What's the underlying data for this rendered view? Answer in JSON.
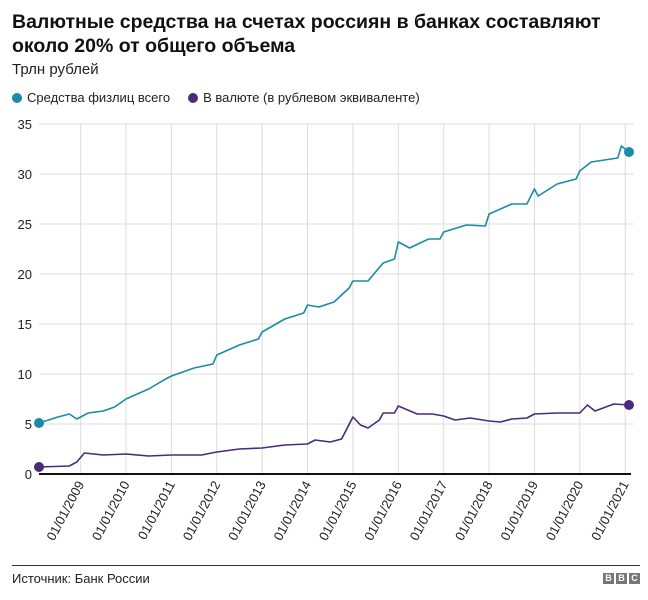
{
  "chart_data": {
    "type": "line",
    "title": "Валютные средства на счетах россиян в банках составляют около 20% от общего объема",
    "subtitle": "Трлн рублей",
    "source": "Источник: Банк России",
    "logo": "BBC",
    "ylim": [
      0,
      35
    ],
    "yticks": [
      0,
      5,
      10,
      15,
      20,
      25,
      30,
      35
    ],
    "xlim": [
      "2008-02",
      "2021-02"
    ],
    "xticks": [
      "01/01/2009",
      "01/01/2010",
      "01/01/2011",
      "01/01/2012",
      "01/01/2013",
      "01/01/2014",
      "01/01/2015",
      "01/01/2016",
      "01/01/2017",
      "01/01/2018",
      "01/01/2019",
      "01/01/2020",
      "01/01/2021"
    ],
    "grid": true,
    "legend_position": "top-left",
    "series": [
      {
        "name": "Средства физлиц всего",
        "color": "#1a8ca7",
        "points": [
          [
            "2008-02",
            5.1
          ],
          [
            "2008-07",
            5.7
          ],
          [
            "2008-10",
            6.0
          ],
          [
            "2008-12",
            5.5
          ],
          [
            "2009-03",
            6.1
          ],
          [
            "2009-07",
            6.3
          ],
          [
            "2009-10",
            6.7
          ],
          [
            "2010-01",
            7.5
          ],
          [
            "2010-07",
            8.5
          ],
          [
            "2010-11",
            9.4
          ],
          [
            "2011-01",
            9.8
          ],
          [
            "2011-07",
            10.6
          ],
          [
            "2011-12",
            11.0
          ],
          [
            "2012-01",
            11.9
          ],
          [
            "2012-07",
            12.9
          ],
          [
            "2012-12",
            13.5
          ],
          [
            "2013-01",
            14.2
          ],
          [
            "2013-07",
            15.5
          ],
          [
            "2013-12",
            16.1
          ],
          [
            "2014-01",
            16.9
          ],
          [
            "2014-04",
            16.7
          ],
          [
            "2014-08",
            17.2
          ],
          [
            "2014-12",
            18.6
          ],
          [
            "2015-01",
            19.3
          ],
          [
            "2015-05",
            19.3
          ],
          [
            "2015-09",
            21.1
          ],
          [
            "2015-12",
            21.5
          ],
          [
            "2016-01",
            23.2
          ],
          [
            "2016-04",
            22.6
          ],
          [
            "2016-09",
            23.5
          ],
          [
            "2016-12",
            23.5
          ],
          [
            "2017-01",
            24.2
          ],
          [
            "2017-07",
            24.9
          ],
          [
            "2017-12",
            24.8
          ],
          [
            "2018-01",
            26.0
          ],
          [
            "2018-07",
            27.0
          ],
          [
            "2018-11",
            27.0
          ],
          [
            "2019-01",
            28.5
          ],
          [
            "2019-02",
            27.8
          ],
          [
            "2019-07",
            29.0
          ],
          [
            "2019-12",
            29.5
          ],
          [
            "2020-01",
            30.3
          ],
          [
            "2020-04",
            31.2
          ],
          [
            "2020-11",
            31.6
          ],
          [
            "2020-12",
            32.8
          ],
          [
            "2021-02",
            32.2
          ]
        ]
      },
      {
        "name": "В валюте (в рублевом эквиваленте)",
        "color": "#4b2a7b",
        "points": [
          [
            "2008-02",
            0.7
          ],
          [
            "2008-10",
            0.8
          ],
          [
            "2008-12",
            1.2
          ],
          [
            "2009-02",
            2.1
          ],
          [
            "2009-07",
            1.9
          ],
          [
            "2010-01",
            2.0
          ],
          [
            "2010-07",
            1.8
          ],
          [
            "2011-01",
            1.9
          ],
          [
            "2011-09",
            1.9
          ],
          [
            "2012-01",
            2.2
          ],
          [
            "2012-07",
            2.5
          ],
          [
            "2013-01",
            2.6
          ],
          [
            "2013-07",
            2.9
          ],
          [
            "2014-01",
            3.0
          ],
          [
            "2014-03",
            3.4
          ],
          [
            "2014-07",
            3.2
          ],
          [
            "2014-10",
            3.5
          ],
          [
            "2015-01",
            5.7
          ],
          [
            "2015-03",
            4.9
          ],
          [
            "2015-05",
            4.6
          ],
          [
            "2015-08",
            5.4
          ],
          [
            "2015-09",
            6.1
          ],
          [
            "2015-12",
            6.1
          ],
          [
            "2016-01",
            6.8
          ],
          [
            "2016-06",
            6.0
          ],
          [
            "2016-10",
            6.0
          ],
          [
            "2017-01",
            5.8
          ],
          [
            "2017-04",
            5.4
          ],
          [
            "2017-08",
            5.6
          ],
          [
            "2018-01",
            5.3
          ],
          [
            "2018-04",
            5.2
          ],
          [
            "2018-07",
            5.5
          ],
          [
            "2018-11",
            5.6
          ],
          [
            "2019-01",
            6.0
          ],
          [
            "2019-07",
            6.1
          ],
          [
            "2019-11",
            6.1
          ],
          [
            "2020-01",
            6.1
          ],
          [
            "2020-03",
            6.9
          ],
          [
            "2020-05",
            6.3
          ],
          [
            "2020-10",
            7.0
          ],
          [
            "2021-02",
            6.9
          ]
        ]
      }
    ]
  }
}
